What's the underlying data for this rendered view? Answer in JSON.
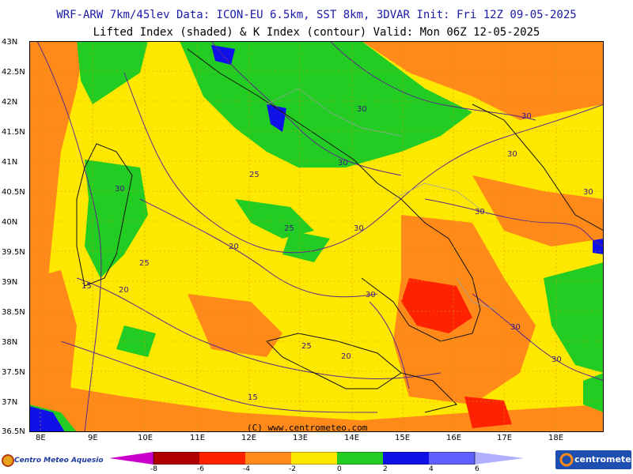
{
  "header": {
    "title_line1": "WRF-ARW 7km/45lev  Data: ICON-EU 6.5km, SST 8km, 3DVAR  Init: Fri 12Z 09-05-2025",
    "title_line2": "Lifted Index (shaded) & K Index (contour)  Valid: Mon 06Z 12-05-2025"
  },
  "axes": {
    "lat_labels": [
      "43N",
      "42.5N",
      "42N",
      "41.5N",
      "41N",
      "40.5N",
      "40N",
      "39.5N",
      "39N",
      "38.5N",
      "38N",
      "37.5N",
      "37N",
      "36.5N"
    ],
    "lon_labels": [
      "8E",
      "9E",
      "10E",
      "11E",
      "12E",
      "13E",
      "14E",
      "15E",
      "16E",
      "17E",
      "18E"
    ]
  },
  "contour_labels": {
    "k_index": [
      "30",
      "30",
      "30",
      "30",
      "30",
      "30",
      "30",
      "30",
      "30",
      "30",
      "30",
      "25",
      "25",
      "25",
      "25",
      "20",
      "20",
      "20",
      "15",
      "15"
    ]
  },
  "colorbar": {
    "labels": [
      "-8",
      "-6",
      "-4",
      "-2",
      "0",
      "2",
      "4",
      "6"
    ],
    "colors": [
      "#cc00cc",
      "#b00000",
      "#ff2200",
      "#ff8a1a",
      "#ffe800",
      "#22cc22",
      "#1010e8",
      "#6060ff",
      "#b0b0ff"
    ]
  },
  "credit": "(C) www.centrometeo.com",
  "logos": {
    "left": "Centro Meteo Aquesio",
    "right": "centrometeo"
  }
}
